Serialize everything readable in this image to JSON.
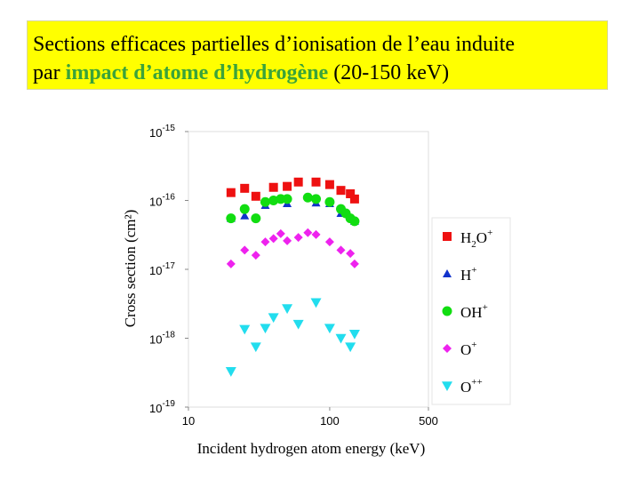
{
  "title": {
    "line1": "Sections efficaces partielles d’ionisation de l’eau induite",
    "line2_pre": "par ",
    "line2_highlight": "impact d’atome d’hydrogène",
    "line2_post": " (20-150 keV)",
    "bg_color": "#ffff00",
    "highlight_color": "#3aa33a"
  },
  "chart_data": {
    "type": "scatter",
    "xlabel": "Incident hydrogen atom energy (keV)",
    "ylabel": "Cross section (cm²)",
    "xscale": "log",
    "yscale": "log",
    "xlim": [
      10,
      500
    ],
    "ylim": [
      1e-19,
      1e-15
    ],
    "xticks": [
      {
        "value": 10,
        "label": "10"
      },
      {
        "value": 100,
        "label": "100"
      },
      {
        "value": 500,
        "label": "500"
      }
    ],
    "yticks": [
      {
        "value": 1e-15,
        "base": "10",
        "exp": "-15"
      },
      {
        "value": 1e-16,
        "base": "10",
        "exp": "-16"
      },
      {
        "value": 1e-17,
        "base": "10",
        "exp": "-17"
      },
      {
        "value": 1e-18,
        "base": "10",
        "exp": "-18"
      },
      {
        "value": 1e-19,
        "base": "10",
        "exp": "-19"
      }
    ],
    "legend_position": "right",
    "series": [
      {
        "name": "H2O+",
        "marker": "square",
        "color": "#ee1111",
        "x": [
          20,
          25,
          30,
          40,
          50,
          60,
          80,
          100,
          120,
          140,
          150
        ],
        "y": [
          1.3e-16,
          1.5e-16,
          1.15e-16,
          1.55e-16,
          1.6e-16,
          1.85e-16,
          1.85e-16,
          1.7e-16,
          1.4e-16,
          1.25e-16,
          1.05e-16
        ]
      },
      {
        "name": "H+",
        "marker": "triangle-up",
        "color": "#1133cc",
        "x": [
          20,
          25,
          35,
          50,
          80,
          100,
          120,
          150
        ],
        "y": [
          5.5e-17,
          6e-17,
          8.5e-17,
          9e-17,
          9.2e-17,
          9e-17,
          6.5e-17,
          5e-17
        ]
      },
      {
        "name": "OH+",
        "marker": "circle",
        "color": "#11dd11",
        "x": [
          20,
          25,
          30,
          35,
          40,
          45,
          50,
          70,
          80,
          100,
          120,
          130,
          140,
          150
        ],
        "y": [
          5.5e-17,
          7.5e-17,
          5.5e-17,
          9.5e-17,
          1e-16,
          1.05e-16,
          1.05e-16,
          1.1e-16,
          1.05e-16,
          9.5e-17,
          7.5e-17,
          6.5e-17,
          5.5e-17,
          5e-17
        ]
      },
      {
        "name": "O+",
        "marker": "diamond",
        "color": "#ee22ee",
        "x": [
          20,
          25,
          30,
          35,
          40,
          45,
          50,
          60,
          70,
          80,
          100,
          120,
          140,
          150
        ],
        "y": [
          1.2e-17,
          1.9e-17,
          1.6e-17,
          2.5e-17,
          2.8e-17,
          3.3e-17,
          2.6e-17,
          2.9e-17,
          3.4e-17,
          3.2e-17,
          2.5e-17,
          1.9e-17,
          1.7e-17,
          1.2e-17
        ]
      },
      {
        "name": "O++",
        "marker": "triangle-down",
        "color": "#22ddee",
        "x": [
          20,
          25,
          30,
          35,
          40,
          50,
          60,
          80,
          100,
          120,
          140,
          150
        ],
        "y": [
          3.3e-19,
          1.35e-18,
          7.5e-19,
          1.4e-18,
          2e-18,
          2.7e-18,
          1.6e-18,
          3.3e-18,
          1.4e-18,
          1e-18,
          7.5e-19,
          1.15e-18
        ]
      }
    ]
  },
  "legend": [
    {
      "base": "H",
      "sub": "2",
      "rest": "O",
      "sup": "+"
    },
    {
      "base": "H",
      "sub": "",
      "rest": "",
      "sup": "+"
    },
    {
      "base": "OH",
      "sub": "",
      "rest": "",
      "sup": "+"
    },
    {
      "base": "O",
      "sub": "",
      "rest": "",
      "sup": "+"
    },
    {
      "base": "O",
      "sub": "",
      "rest": "",
      "sup": "++"
    }
  ]
}
